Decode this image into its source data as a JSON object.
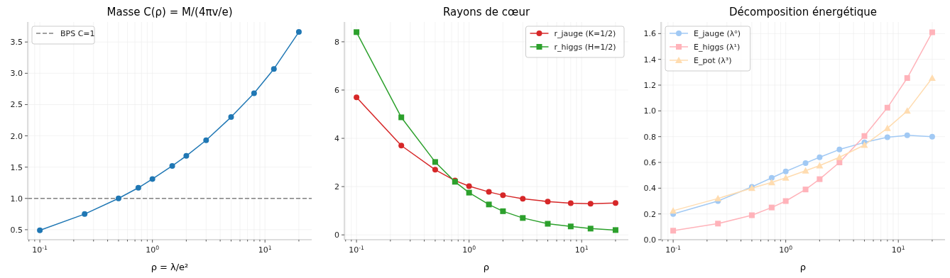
{
  "chart_data": [
    {
      "type": "line",
      "title": "Masse C(ρ) = M/(4πv/e)",
      "xlabel": "ρ = λ/e²",
      "log": "x",
      "grid": true,
      "legend": "top left",
      "marker": "circle",
      "x": [
        0.1,
        0.25,
        0.5,
        0.75,
        1,
        1.5,
        2,
        3,
        5,
        8,
        12,
        20
      ],
      "series": [
        {
          "color": "#1f77b4",
          "values": [
            0.49,
            0.75,
            1.0,
            1.17,
            1.31,
            1.52,
            1.68,
            1.93,
            2.3,
            2.68,
            3.07,
            3.66
          ]
        }
      ],
      "ref_lines": [
        {
          "axis": "y",
          "value": 1,
          "label": "BPS C=1",
          "color": "#808080",
          "line_style": "dashed"
        }
      ],
      "xlim": [
        0.078,
        26
      ],
      "ylim": [
        0.34,
        3.82
      ],
      "xticks": [
        {
          "value": 0.08,
          "label": null
        },
        {
          "value": 0.09,
          "label": null
        },
        {
          "value": 0.1,
          "label": "10$^{-1}$"
        },
        {
          "value": 0.2,
          "label": null
        },
        {
          "value": 0.3,
          "label": null
        },
        {
          "value": 0.4,
          "label": null
        },
        {
          "value": 0.5,
          "label": null
        },
        {
          "value": 0.6,
          "label": null
        },
        {
          "value": 0.7,
          "label": null
        },
        {
          "value": 0.8,
          "label": null
        },
        {
          "value": 0.9,
          "label": null
        },
        {
          "value": 1,
          "label": "10$^{0}$"
        },
        {
          "value": 2,
          "label": null
        },
        {
          "value": 3,
          "label": null
        },
        {
          "value": 4,
          "label": null
        },
        {
          "value": 5,
          "label": null
        },
        {
          "value": 6,
          "label": null
        },
        {
          "value": 7,
          "label": null
        },
        {
          "value": 8,
          "label": null
        },
        {
          "value": 9,
          "label": null
        },
        {
          "value": 10,
          "label": "10$^{1}$"
        },
        {
          "value": 20,
          "label": null
        }
      ],
      "yticks": [
        {
          "value": 0.5,
          "label": "0.5"
        },
        {
          "value": 1,
          "label": "1.0"
        },
        {
          "value": 1.5,
          "label": "1.5"
        },
        {
          "value": 2,
          "label": "2.0"
        },
        {
          "value": 2.5,
          "label": "2.5"
        },
        {
          "value": 3,
          "label": "3.0"
        },
        {
          "value": 3.5,
          "label": "3.5"
        }
      ]
    },
    {
      "type": "line",
      "title": "Rayons de cœur",
      "xlabel": "ρ",
      "log": "x",
      "grid": true,
      "legend": "top right",
      "x": [
        0.1,
        0.25,
        0.5,
        0.75,
        1,
        1.5,
        2,
        3,
        5,
        8,
        12,
        20
      ],
      "series": [
        {
          "name": "r_jauge (K=1/2)",
          "color": "#d62728",
          "marker": "circle",
          "values": [
            5.7,
            3.7,
            2.7,
            2.25,
            2.02,
            1.78,
            1.64,
            1.5,
            1.38,
            1.31,
            1.29,
            1.32
          ]
        },
        {
          "name": "r_higgs (H=1/2)",
          "color": "#2ca02c",
          "marker": "square",
          "values": [
            8.4,
            4.87,
            3.02,
            2.2,
            1.75,
            1.26,
            0.98,
            0.7,
            0.46,
            0.35,
            0.26,
            0.2
          ]
        }
      ],
      "xlim": [
        0.078,
        26
      ],
      "ylim": [
        -0.2,
        8.82
      ],
      "xticks": [
        {
          "value": 0.08,
          "label": null
        },
        {
          "value": 0.09,
          "label": null
        },
        {
          "value": 0.1,
          "label": "10$^{-1}$"
        },
        {
          "value": 0.2,
          "label": null
        },
        {
          "value": 0.3,
          "label": null
        },
        {
          "value": 0.4,
          "label": null
        },
        {
          "value": 0.5,
          "label": null
        },
        {
          "value": 0.6,
          "label": null
        },
        {
          "value": 0.7,
          "label": null
        },
        {
          "value": 0.8,
          "label": null
        },
        {
          "value": 0.9,
          "label": null
        },
        {
          "value": 1,
          "label": "10$^{0}$"
        },
        {
          "value": 2,
          "label": null
        },
        {
          "value": 3,
          "label": null
        },
        {
          "value": 4,
          "label": null
        },
        {
          "value": 5,
          "label": null
        },
        {
          "value": 6,
          "label": null
        },
        {
          "value": 7,
          "label": null
        },
        {
          "value": 8,
          "label": null
        },
        {
          "value": 9,
          "label": null
        },
        {
          "value": 10,
          "label": "10$^{1}$"
        },
        {
          "value": 20,
          "label": null
        }
      ],
      "yticks": [
        0,
        2,
        4,
        6,
        8
      ]
    },
    {
      "type": "line",
      "title": "Décomposition énergétique",
      "xlabel": "ρ",
      "log": "x",
      "grid": true,
      "legend": "top left",
      "x": [
        0.1,
        0.25,
        0.5,
        0.75,
        1,
        1.5,
        2,
        3,
        5,
        8,
        12,
        20
      ],
      "series": [
        {
          "name": "E_jauge (λ⁰)",
          "color": "#a1c9f4",
          "marker": "circle",
          "values": [
            0.2,
            0.3,
            0.41,
            0.48,
            0.53,
            0.595,
            0.64,
            0.7,
            0.755,
            0.795,
            0.81,
            0.8
          ]
        },
        {
          "name": "E_higgs (λ¹)",
          "color": "#ffb3ba",
          "marker": "square",
          "values": [
            0.07,
            0.125,
            0.19,
            0.25,
            0.3,
            0.39,
            0.47,
            0.6,
            0.805,
            1.025,
            1.255,
            1.61
          ]
        },
        {
          "name": "E_pot (λ³)",
          "color": "#ffdcb0",
          "marker": "triangle",
          "values": [
            0.225,
            0.32,
            0.4,
            0.445,
            0.48,
            0.535,
            0.575,
            0.64,
            0.735,
            0.865,
            1.0,
            1.255
          ]
        }
      ],
      "xlim": [
        0.078,
        26
      ],
      "ylim": [
        0,
        1.69
      ],
      "xticks": [
        {
          "value": 0.08,
          "label": null
        },
        {
          "value": 0.09,
          "label": null
        },
        {
          "value": 0.1,
          "label": "10$^{-1}$"
        },
        {
          "value": 0.2,
          "label": null
        },
        {
          "value": 0.3,
          "label": null
        },
        {
          "value": 0.4,
          "label": null
        },
        {
          "value": 0.5,
          "label": null
        },
        {
          "value": 0.6,
          "label": null
        },
        {
          "value": 0.7,
          "label": null
        },
        {
          "value": 0.8,
          "label": null
        },
        {
          "value": 0.9,
          "label": null
        },
        {
          "value": 1,
          "label": "10$^{0}$"
        },
        {
          "value": 2,
          "label": null
        },
        {
          "value": 3,
          "label": null
        },
        {
          "value": 4,
          "label": null
        },
        {
          "value": 5,
          "label": null
        },
        {
          "value": 6,
          "label": null
        },
        {
          "value": 7,
          "label": null
        },
        {
          "value": 8,
          "label": null
        },
        {
          "value": 9,
          "label": null
        },
        {
          "value": 10,
          "label": "10$^{1}$"
        },
        {
          "value": 20,
          "label": null
        }
      ],
      "yticks": [
        {
          "value": 0,
          "label": "0.0"
        },
        {
          "value": 0.2,
          "label": "0.2"
        },
        {
          "value": 0.4,
          "label": "0.4"
        },
        {
          "value": 0.6,
          "label": "0.6"
        },
        {
          "value": 0.8,
          "label": "0.8"
        },
        {
          "value": 1,
          "label": "1.0"
        },
        {
          "value": 1.2,
          "label": "1.2"
        },
        {
          "value": 1.4,
          "label": "1.4"
        },
        {
          "value": 1.6,
          "label": "1.6"
        }
      ]
    }
  ]
}
